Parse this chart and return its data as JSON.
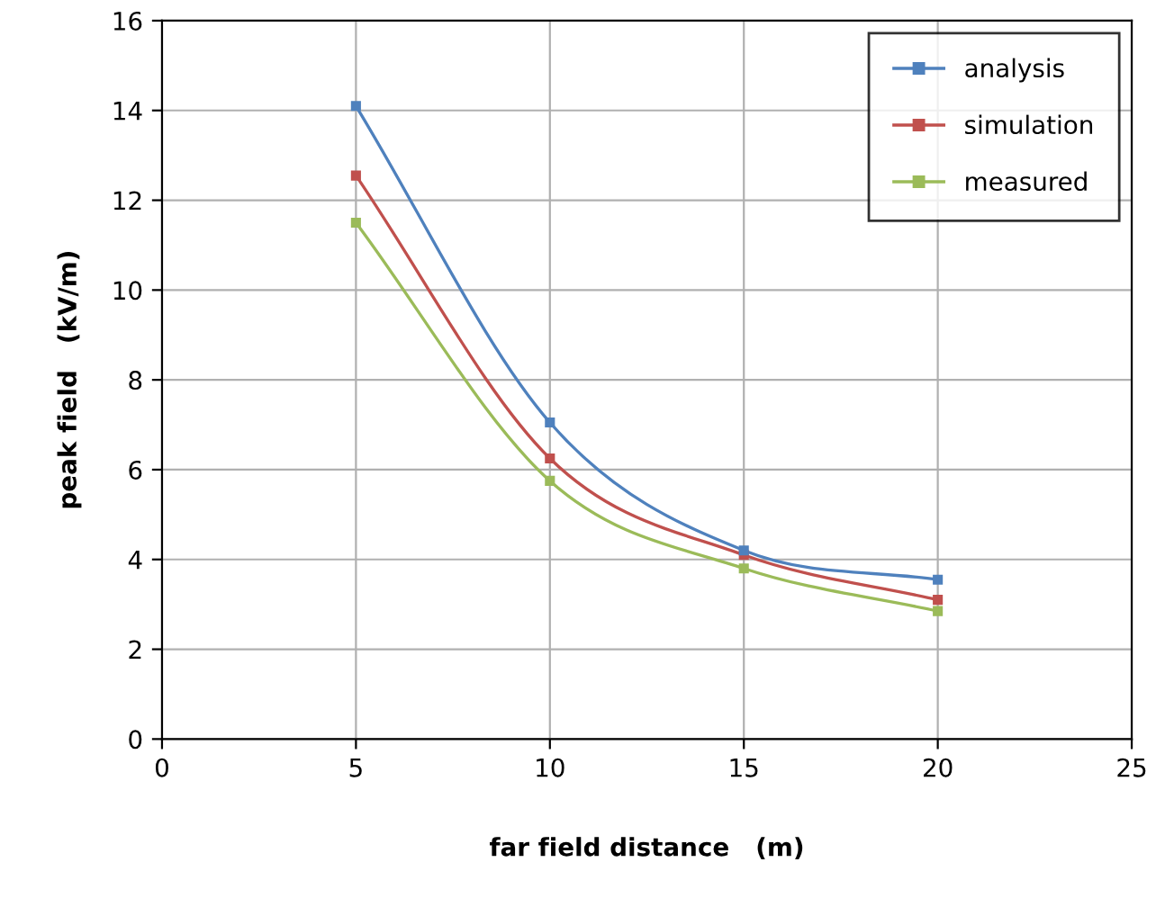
{
  "chart_data": {
    "type": "line",
    "xlabel": "far field distance   (m)",
    "ylabel": "peak field   (kV/m)",
    "x": [
      5,
      10,
      15,
      20
    ],
    "series": [
      {
        "name": "analysis",
        "color": "#4f81bd",
        "values": [
          14.1,
          7.05,
          4.2,
          3.55
        ]
      },
      {
        "name": "simulation",
        "color": "#c0504d",
        "values": [
          12.55,
          6.25,
          4.1,
          3.1
        ]
      },
      {
        "name": "measured",
        "color": "#9bbb59",
        "values": [
          11.5,
          5.75,
          3.8,
          2.85
        ]
      }
    ],
    "xlim": [
      0,
      25
    ],
    "xticks": [
      0,
      5,
      10,
      15,
      20,
      25
    ],
    "ylim": [
      0,
      16
    ],
    "yticks": [
      0,
      2,
      4,
      6,
      8,
      10,
      12,
      14,
      16
    ],
    "grid": true,
    "legend": "top right",
    "marker": "square",
    "line_style": "solid"
  }
}
